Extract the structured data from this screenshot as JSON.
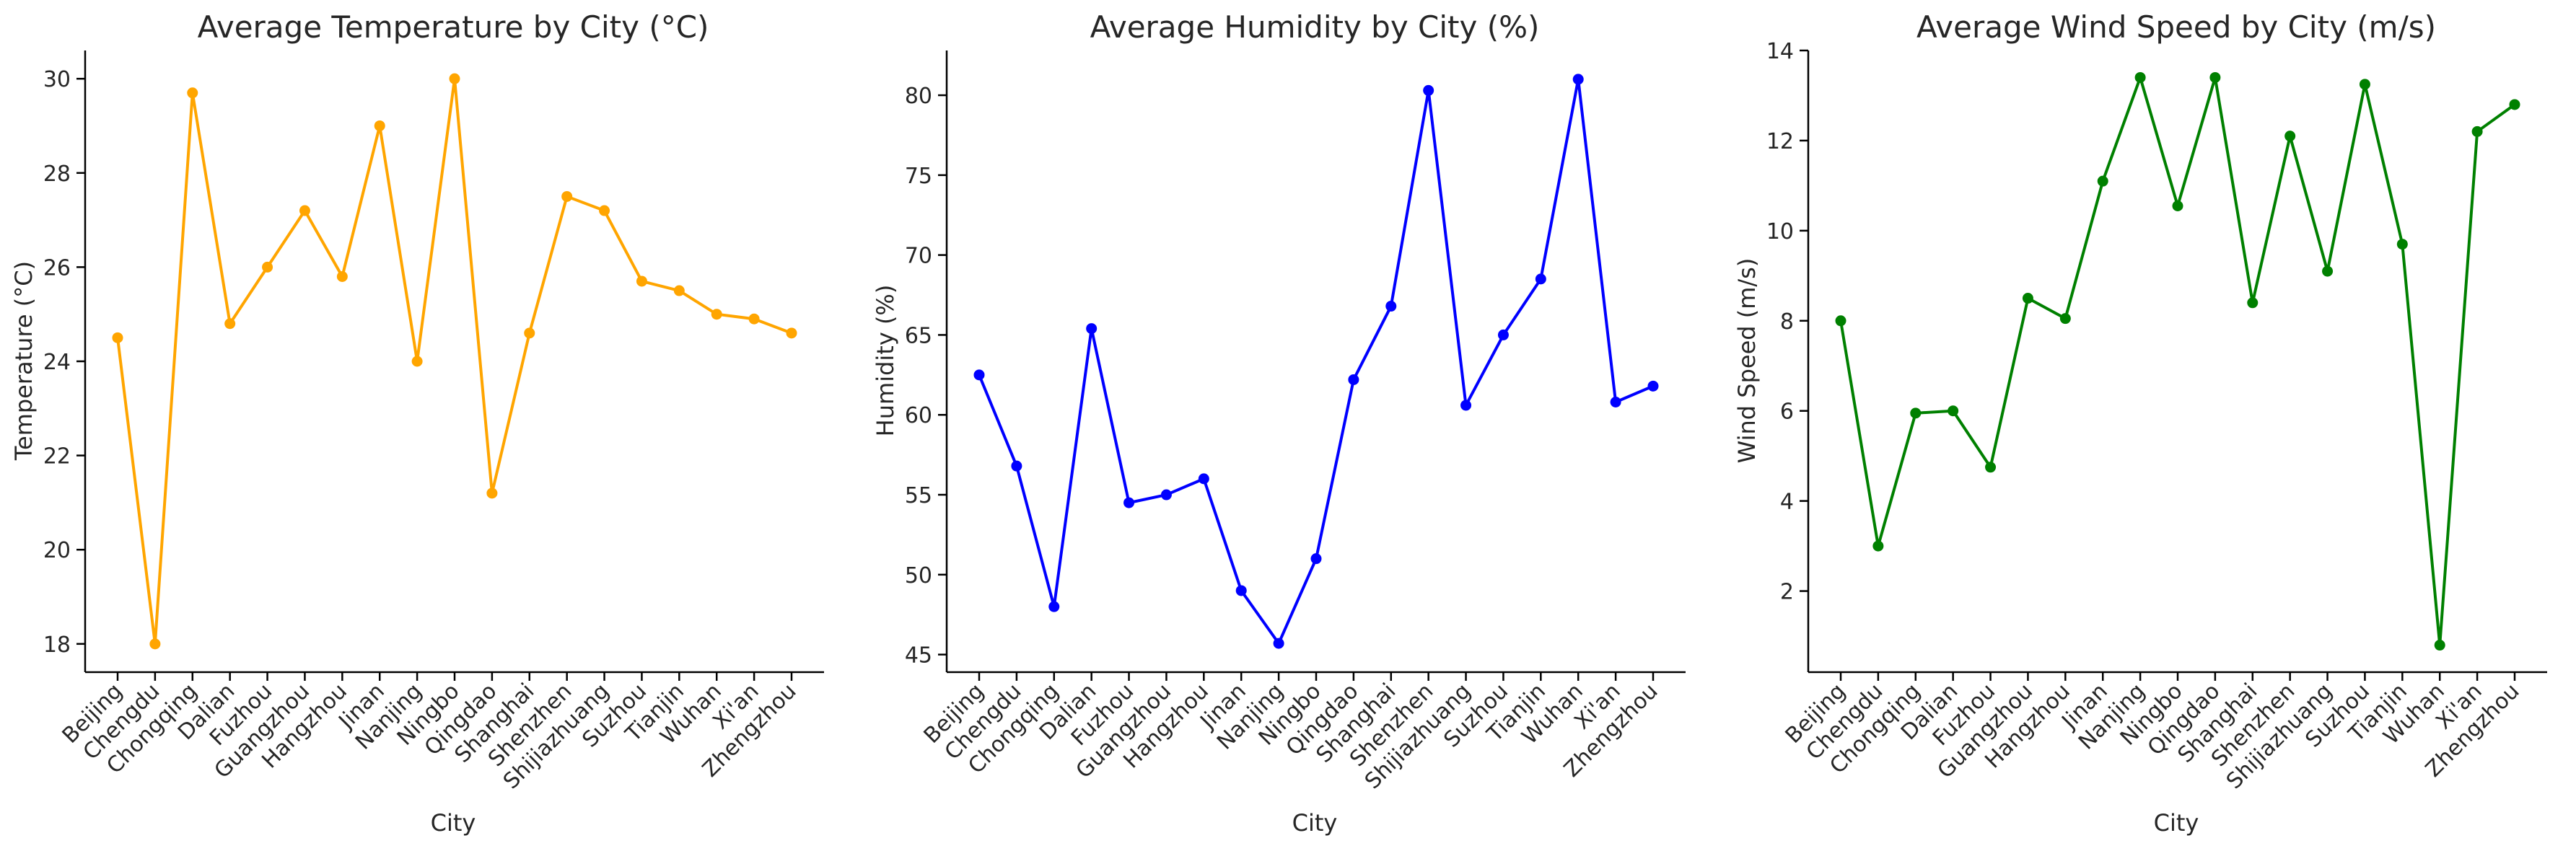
{
  "chart_data": [
    {
      "type": "line",
      "title": "Average Temperature by City (°C)",
      "xlabel": "City",
      "ylabel": "Temperature (°C)",
      "color": "#FFA500",
      "categories": [
        "Beijing",
        "Chengdu",
        "Chongqing",
        "Dalian",
        "Fuzhou",
        "Guangzhou",
        "Hangzhou",
        "Jinan",
        "Nanjing",
        "Ningbo",
        "Qingdao",
        "Shanghai",
        "Shenzhen",
        "Shijiazhuang",
        "Suzhou",
        "Tianjin",
        "Wuhan",
        "Xi'an",
        "Zhengzhou"
      ],
      "values": [
        24.5,
        18.0,
        29.7,
        24.8,
        26.0,
        27.2,
        25.8,
        29.0,
        24.0,
        30.0,
        21.2,
        24.6,
        27.5,
        27.2,
        25.7,
        25.5,
        25.0,
        24.9,
        24.6
      ],
      "ylim": [
        17.4,
        30.6
      ],
      "yticks": [
        18,
        20,
        22,
        24,
        26,
        28,
        30
      ],
      "grid": false
    },
    {
      "type": "line",
      "title": "Average Humidity by City (%)",
      "xlabel": "City",
      "ylabel": "Humidity (%)",
      "color": "#0000FF",
      "categories": [
        "Beijing",
        "Chengdu",
        "Chongqing",
        "Dalian",
        "Fuzhou",
        "Guangzhou",
        "Hangzhou",
        "Jinan",
        "Nanjing",
        "Ningbo",
        "Qingdao",
        "Shanghai",
        "Shenzhen",
        "Shijiazhuang",
        "Suzhou",
        "Tianjin",
        "Wuhan",
        "Xi'an",
        "Zhengzhou"
      ],
      "values": [
        62.5,
        56.8,
        48.0,
        65.4,
        54.5,
        55.0,
        56.0,
        49.0,
        45.7,
        51.0,
        62.2,
        66.8,
        80.3,
        60.6,
        65.0,
        68.5,
        81.0,
        60.8,
        61.8
      ],
      "ylim": [
        43.9,
        82.8
      ],
      "yticks": [
        45,
        50,
        55,
        60,
        65,
        70,
        75,
        80
      ],
      "grid": false
    },
    {
      "type": "line",
      "title": "Average Wind Speed by City (m/s)",
      "xlabel": "City",
      "ylabel": "Wind Speed (m/s)",
      "color": "#008000",
      "categories": [
        "Beijing",
        "Chengdu",
        "Chongqing",
        "Dalian",
        "Fuzhou",
        "Guangzhou",
        "Hangzhou",
        "Jinan",
        "Nanjing",
        "Ningbo",
        "Qingdao",
        "Shanghai",
        "Shenzhen",
        "Shijiazhuang",
        "Suzhou",
        "Tianjin",
        "Wuhan",
        "Xi'an",
        "Zhengzhou"
      ],
      "values": [
        8.0,
        3.0,
        5.95,
        6.0,
        4.75,
        8.5,
        8.05,
        11.1,
        13.4,
        10.55,
        13.4,
        8.4,
        12.1,
        9.1,
        13.25,
        9.7,
        0.8,
        12.2,
        12.8
      ],
      "ylim": [
        0.2,
        14.0
      ],
      "yticks": [
        2,
        4,
        6,
        8,
        10,
        12,
        14
      ],
      "grid": false
    }
  ]
}
